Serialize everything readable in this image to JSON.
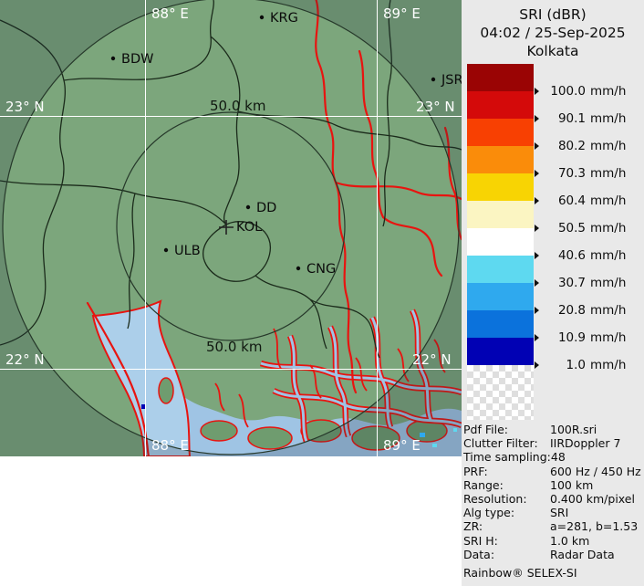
{
  "panel": {
    "title": "SRI (dBR)",
    "datetime": "04:02 / 25-Sep-2025",
    "site": "Kolkata",
    "footer": "Rainbow® SELEX-SI"
  },
  "legend": {
    "unit": "mm/h",
    "items": [
      {
        "value": "100.0",
        "color": "#9A0404"
      },
      {
        "value": "90.1",
        "color": "#D40A0A"
      },
      {
        "value": "80.2",
        "color": "#F84002"
      },
      {
        "value": "70.3",
        "color": "#FA8C0A"
      },
      {
        "value": "60.4",
        "color": "#F8D403"
      },
      {
        "value": "50.5",
        "color": "#FBF5C2"
      },
      {
        "value": "40.6",
        "color": "#FFFFFF"
      },
      {
        "value": "30.7",
        "color": "#5ED9F0"
      },
      {
        "value": "20.8",
        "color": "#2FA9EE"
      },
      {
        "value": "10.9",
        "color": "#0B72DC"
      },
      {
        "value": "1.0",
        "color": "#0101B4"
      }
    ]
  },
  "metadata": {
    "rows": [
      {
        "label": "Pdf File:",
        "value": "100R.sri"
      },
      {
        "label": "Clutter Filter:",
        "value": "IIRDoppler 7"
      },
      {
        "label": "Time sampling:",
        "value": "48"
      },
      {
        "label": "PRF:",
        "value": "600 Hz / 450 Hz"
      },
      {
        "label": "Range:",
        "value": "100 km"
      },
      {
        "label": "Resolution:",
        "value": "0.400 km/pixel"
      },
      {
        "label": "Alg type:",
        "value": "SRI"
      },
      {
        "label": "ZR:",
        "value": "a=281, b=1.53"
      },
      {
        "label": "SRI H:",
        "value": "1.0 km"
      },
      {
        "label": "Data:",
        "value": "Radar Data"
      }
    ]
  },
  "map": {
    "grid": {
      "lon_west": "88° E",
      "lon_east": "89° E",
      "lat_north": "23° N",
      "lat_south": "22° N"
    },
    "range_ring_label": "50.0 km",
    "cities": {
      "bdw": "BDW",
      "krg": "KRG",
      "jsr": "JSR",
      "dd": "DD",
      "kol": "KOL",
      "ulb": "ULB",
      "cng": "CNG"
    },
    "colors": {
      "land": "#7CA67C",
      "water": "#A9CCE8",
      "river": "#E81410",
      "boundary": "#1B2B1B",
      "grid_line": "#FFFFFF"
    }
  }
}
